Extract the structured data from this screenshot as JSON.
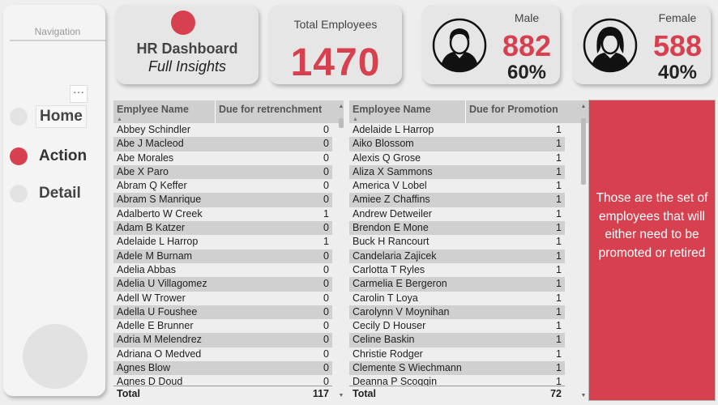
{
  "nav": {
    "title": "Navigation",
    "more": "···",
    "items": [
      {
        "label": "Home"
      },
      {
        "label": "Action"
      },
      {
        "label": "Detail"
      }
    ]
  },
  "header": {
    "title": "HR Dashboard",
    "subtitle": "Full Insights"
  },
  "total": {
    "label": "Total Employees",
    "value": "1470"
  },
  "male": {
    "label": "Male",
    "count": "882",
    "pct": "60%"
  },
  "female": {
    "label": "Female",
    "count": "588",
    "pct": "40%"
  },
  "colors": {
    "accent": "#d6404f"
  },
  "retrenchment": {
    "col_name": "Emplyee Name",
    "col_value": "Due for retrenchment",
    "rows": [
      [
        "Abbey Schindler",
        "0"
      ],
      [
        "Abe J Macleod",
        "0"
      ],
      [
        "Abe Morales",
        "0"
      ],
      [
        "Abe X Paro",
        "0"
      ],
      [
        "Abram Q Keffer",
        "0"
      ],
      [
        "Abram S Manrique",
        "0"
      ],
      [
        "Adalberto W Creek",
        "1"
      ],
      [
        "Adam B Katzer",
        "0"
      ],
      [
        "Adelaide L Harrop",
        "1"
      ],
      [
        "Adele M Burnam",
        "0"
      ],
      [
        "Adelia Abbas",
        "0"
      ],
      [
        "Adelia U Villagomez",
        "0"
      ],
      [
        "Adell W Trower",
        "0"
      ],
      [
        "Adella U Foushee",
        "0"
      ],
      [
        "Adelle E Brunner",
        "0"
      ],
      [
        "Adria M Melendrez",
        "0"
      ],
      [
        "Adriana O Medved",
        "0"
      ],
      [
        "Agnes Blow",
        "0"
      ],
      [
        "Agnes D Doud",
        "0"
      ]
    ],
    "total_label": "Total",
    "total_value": "117"
  },
  "promotion": {
    "col_name": "Employee Name",
    "col_value": "Due for Promotion",
    "rows": [
      [
        "Adelaide L Harrop",
        "1"
      ],
      [
        "Aiko Blossom",
        "1"
      ],
      [
        "Alexis Q Grose",
        "1"
      ],
      [
        "Aliza X Sammons",
        "1"
      ],
      [
        "America V Lobel",
        "1"
      ],
      [
        "Amiee Z Chaffins",
        "1"
      ],
      [
        "Andrew Detweiler",
        "1"
      ],
      [
        "Brendon E Mone",
        "1"
      ],
      [
        "Buck H Rancourt",
        "1"
      ],
      [
        "Candelaria Zajicek",
        "1"
      ],
      [
        "Carlotta T Ryles",
        "1"
      ],
      [
        "Carmelia E Bergeron",
        "1"
      ],
      [
        "Carolin T Loya",
        "1"
      ],
      [
        "Carolynn V Moynihan",
        "1"
      ],
      [
        "Cecily D Houser",
        "1"
      ],
      [
        "Celine Baskin",
        "1"
      ],
      [
        "Christie Rodger",
        "1"
      ],
      [
        "Clemente S Wiechmann",
        "1"
      ],
      [
        "Deanna P Scoggin",
        "1"
      ]
    ],
    "total_label": "Total",
    "total_value": "72"
  },
  "info": {
    "text": "Those are the set of employees that will either need to be promoted or retired"
  }
}
